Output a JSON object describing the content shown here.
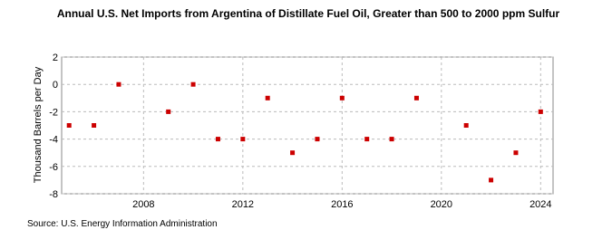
{
  "chart_data": {
    "type": "scatter",
    "title": "Annual U.S. Net Imports from Argentina of Distillate Fuel Oil, Greater than 500 to 2000 ppm Sulfur",
    "y_label": "Thousand Barrels per Day",
    "source": "Source: U.S. Energy Information Administration",
    "x": [
      2005,
      2006,
      2007,
      2009,
      2010,
      2011,
      2012,
      2013,
      2014,
      2015,
      2016,
      2017,
      2018,
      2019,
      2021,
      2022,
      2023,
      2024
    ],
    "values": [
      -3,
      -3,
      0,
      -2,
      0,
      -4,
      -4,
      -1,
      -5,
      -4,
      -1,
      -4,
      -4,
      -1,
      -3,
      -7,
      -5,
      -2
    ],
    "color": "#cc0000",
    "xlim": [
      2004.7,
      2024.5
    ],
    "xticks": [
      2008,
      2012,
      2016,
      2020,
      2024
    ],
    "ylim": [
      -8,
      2
    ],
    "yticks": [
      2,
      0,
      -2,
      -4,
      -6,
      -8
    ],
    "grid": true
  }
}
